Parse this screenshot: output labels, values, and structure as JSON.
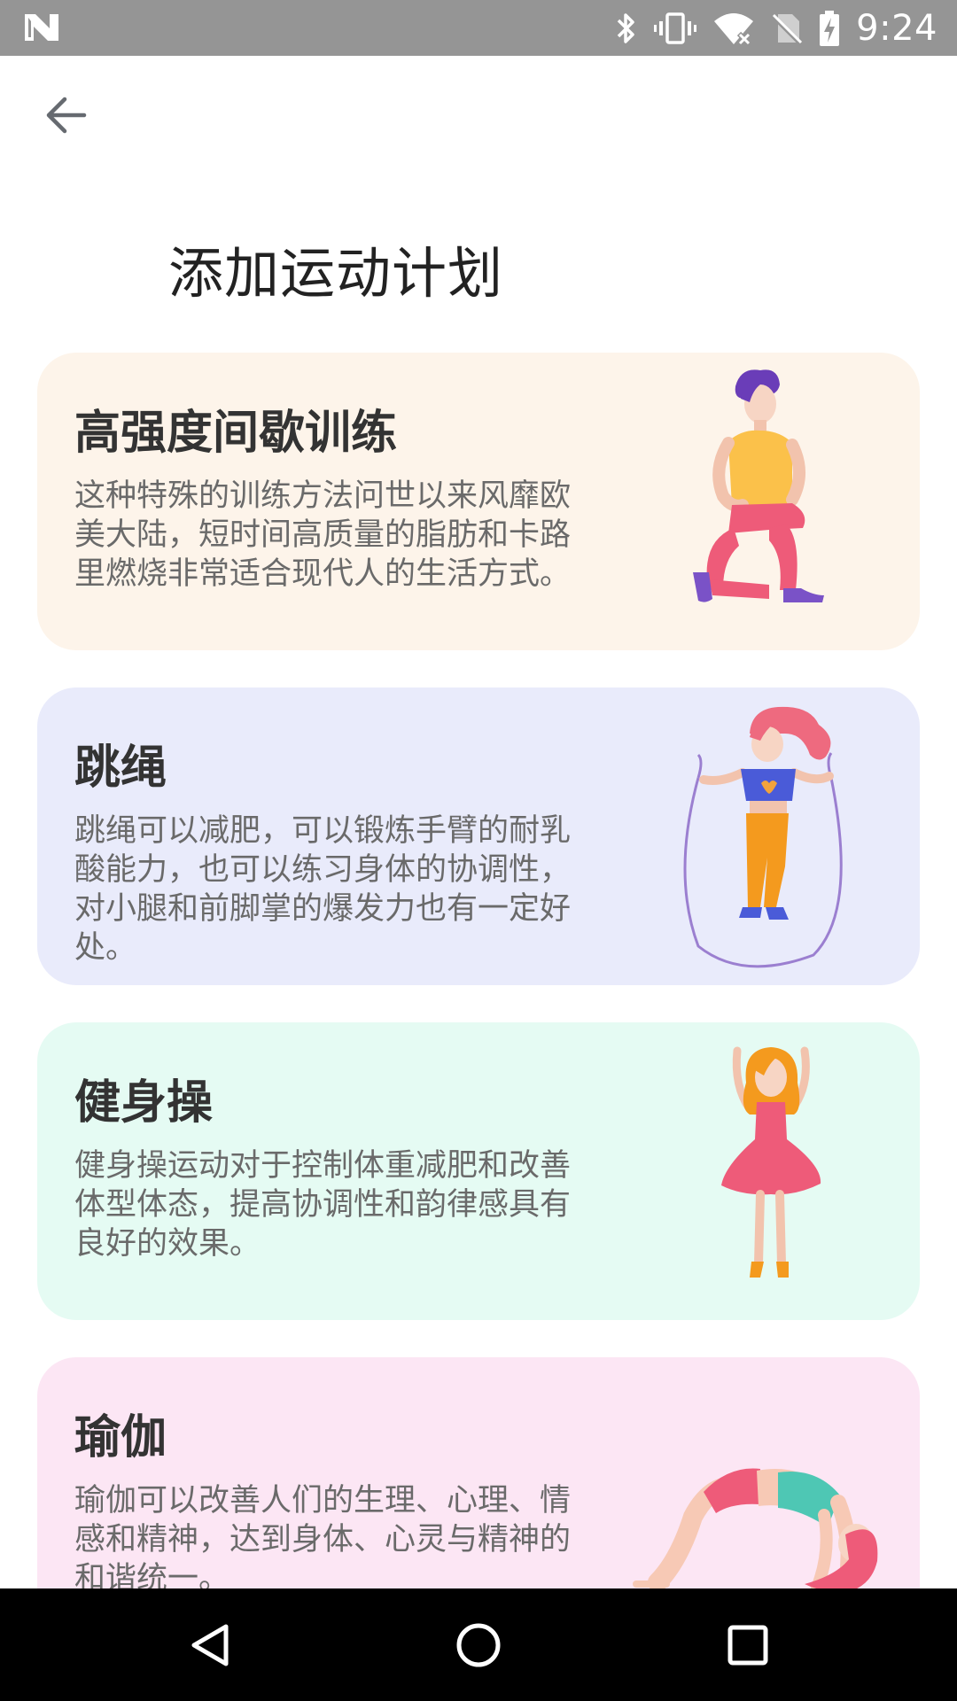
{
  "status_bar": {
    "time": "9:24",
    "icons": [
      "n-logo-icon",
      "bluetooth-icon",
      "vibrate-icon",
      "wifi-off-icon",
      "no-sim-icon",
      "battery-charging-icon"
    ]
  },
  "header": {
    "back_icon": "arrow-left-icon",
    "title": "添加运动计划"
  },
  "plans": [
    {
      "title": "高强度间歇训练",
      "description": "这种特殊的训练方法问世以来风靡欧美大陆，短时间高质量的脂肪和卡路里燃烧非常适合现代人的生活方式。",
      "background": "#fdf4ea",
      "illustration": "lunge-person-illustration"
    },
    {
      "title": "跳绳",
      "description": "跳绳可以减肥，可以锻炼手臂的耐乳酸能力，也可以练习身体的协调性，对小腿和前脚掌的爆发力也有一定好处。",
      "background": "#e9ebfb",
      "illustration": "jump-rope-illustration"
    },
    {
      "title": "健身操",
      "description": "健身操运动对于控制体重减肥和改善体型体态，提高协调性和韵律感具有良好的效果。",
      "background": "#e5fbf3",
      "illustration": "aerobics-dancer-illustration"
    },
    {
      "title": "瑜伽",
      "description": "瑜伽可以改善人们的生理、心理、情感和精神，达到身体、心灵与精神的和谐统一。",
      "background": "#fce6f4",
      "illustration": "yoga-bridge-illustration"
    }
  ],
  "nav_bar": {
    "icons": [
      "back-triangle-icon",
      "home-circle-icon",
      "recents-square-icon"
    ]
  }
}
